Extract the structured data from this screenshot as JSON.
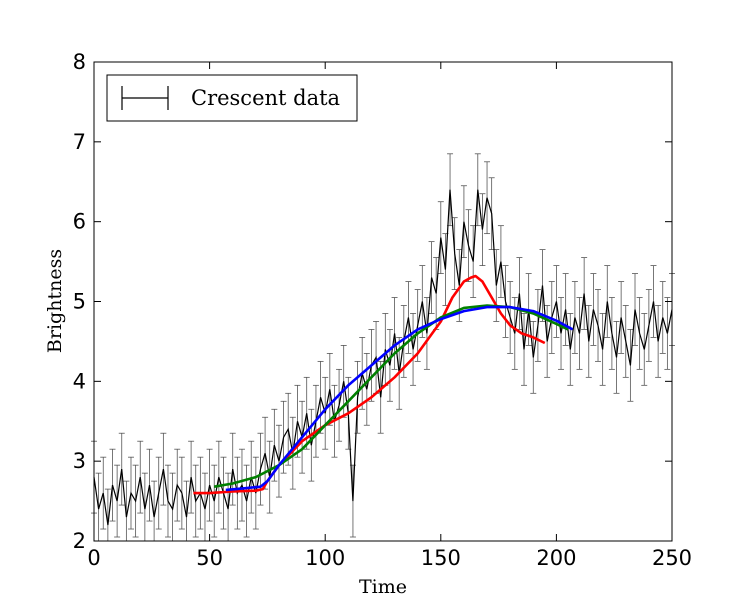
{
  "chart_data": {
    "type": "line",
    "title": "",
    "xlabel": "Time",
    "ylabel": "Brightness",
    "xlim": [
      0,
      250
    ],
    "ylim": [
      2,
      8
    ],
    "xticks": [
      0,
      50,
      100,
      150,
      200,
      250
    ],
    "yticks": [
      2,
      3,
      4,
      5,
      6,
      7,
      8
    ],
    "grid": false,
    "legend_position": "top-left",
    "legend": [
      "Crescent data"
    ],
    "data_series": {
      "name": "Crescent data",
      "style": "errorbar",
      "color": "#000000",
      "error": 0.45,
      "x": [
        0,
        2,
        4,
        6,
        8,
        10,
        12,
        14,
        16,
        18,
        20,
        22,
        24,
        26,
        28,
        30,
        32,
        34,
        36,
        38,
        40,
        42,
        44,
        46,
        48,
        50,
        52,
        54,
        56,
        58,
        60,
        62,
        64,
        66,
        68,
        70,
        72,
        74,
        76,
        78,
        80,
        82,
        84,
        86,
        88,
        90,
        92,
        94,
        96,
        98,
        100,
        102,
        104,
        106,
        108,
        110,
        112,
        114,
        116,
        118,
        120,
        122,
        124,
        126,
        128,
        130,
        132,
        134,
        136,
        138,
        140,
        142,
        144,
        146,
        148,
        150,
        152,
        154,
        156,
        158,
        160,
        162,
        164,
        166,
        168,
        170,
        172,
        174,
        176,
        178,
        180,
        182,
        184,
        186,
        188,
        190,
        192,
        194,
        196,
        198,
        200,
        202,
        204,
        206,
        208,
        210,
        212,
        214,
        216,
        218,
        220,
        222,
        224,
        226,
        228,
        230,
        232,
        234,
        236,
        238,
        240,
        242,
        244,
        246,
        248,
        250
      ],
      "y": [
        2.8,
        2.4,
        2.6,
        2.2,
        2.7,
        2.5,
        2.9,
        2.3,
        2.6,
        2.5,
        2.8,
        2.4,
        2.7,
        2.3,
        2.6,
        2.9,
        2.5,
        2.4,
        2.7,
        2.6,
        2.3,
        2.8,
        2.5,
        2.6,
        2.4,
        2.7,
        2.5,
        2.8,
        2.6,
        2.4,
        2.9,
        2.6,
        2.7,
        2.5,
        2.8,
        2.6,
        2.9,
        3.1,
        2.8,
        3.2,
        3.0,
        3.3,
        3.4,
        3.1,
        3.5,
        3.3,
        3.6,
        3.2,
        3.5,
        3.8,
        3.6,
        3.9,
        3.5,
        3.7,
        4.0,
        3.6,
        2.5,
        3.8,
        4.1,
        3.9,
        4.2,
        4.3,
        3.8,
        4.4,
        4.2,
        4.6,
        4.1,
        4.5,
        4.8,
        4.4,
        4.7,
        5.0,
        4.6,
        5.3,
        5.1,
        5.8,
        5.4,
        6.4,
        5.6,
        5.2,
        6.0,
        5.7,
        5.5,
        6.4,
        5.9,
        6.3,
        6.1,
        5.2,
        5.5,
        5.0,
        4.8,
        4.6,
        5.1,
        4.4,
        4.9,
        4.3,
        4.7,
        5.2,
        4.5,
        4.8,
        5.0,
        4.6,
        4.9,
        4.4,
        4.8,
        4.6,
        5.1,
        4.5,
        4.9,
        4.7,
        4.4,
        5.0,
        4.6,
        4.3,
        4.8,
        4.5,
        4.2,
        4.9,
        4.6,
        4.4,
        4.7,
        5.0,
        4.5,
        4.8,
        4.6,
        4.9
      ]
    },
    "series": [
      {
        "name": "red model",
        "color": "#ff0000",
        "x": [
          43,
          50,
          60,
          70,
          73,
          75,
          80,
          90,
          100,
          110,
          120,
          130,
          140,
          150,
          155,
          160,
          163,
          165,
          168,
          172,
          176,
          180,
          185,
          190,
          195
        ],
        "y": [
          2.6,
          2.6,
          2.62,
          2.63,
          2.65,
          2.75,
          2.95,
          3.25,
          3.45,
          3.6,
          3.8,
          4.05,
          4.35,
          4.75,
          5.05,
          5.25,
          5.3,
          5.32,
          5.25,
          5.05,
          4.85,
          4.7,
          4.6,
          4.55,
          4.48
        ]
      },
      {
        "name": "green model",
        "color": "#008000",
        "x": [
          52,
          60,
          70,
          80,
          90,
          100,
          110,
          120,
          130,
          140,
          150,
          160,
          170,
          180,
          190,
          200,
          205
        ],
        "y": [
          2.68,
          2.72,
          2.8,
          2.95,
          3.15,
          3.45,
          3.75,
          4.05,
          4.35,
          4.6,
          4.8,
          4.92,
          4.95,
          4.93,
          4.85,
          4.72,
          4.65
        ]
      },
      {
        "name": "blue model",
        "color": "#0000ff",
        "x": [
          57,
          65,
          72,
          75,
          80,
          90,
          100,
          110,
          120,
          130,
          140,
          150,
          160,
          170,
          180,
          190,
          200,
          207
        ],
        "y": [
          2.64,
          2.66,
          2.68,
          2.75,
          2.95,
          3.3,
          3.65,
          3.95,
          4.2,
          4.45,
          4.65,
          4.78,
          4.88,
          4.93,
          4.93,
          4.88,
          4.76,
          4.65
        ]
      }
    ]
  }
}
